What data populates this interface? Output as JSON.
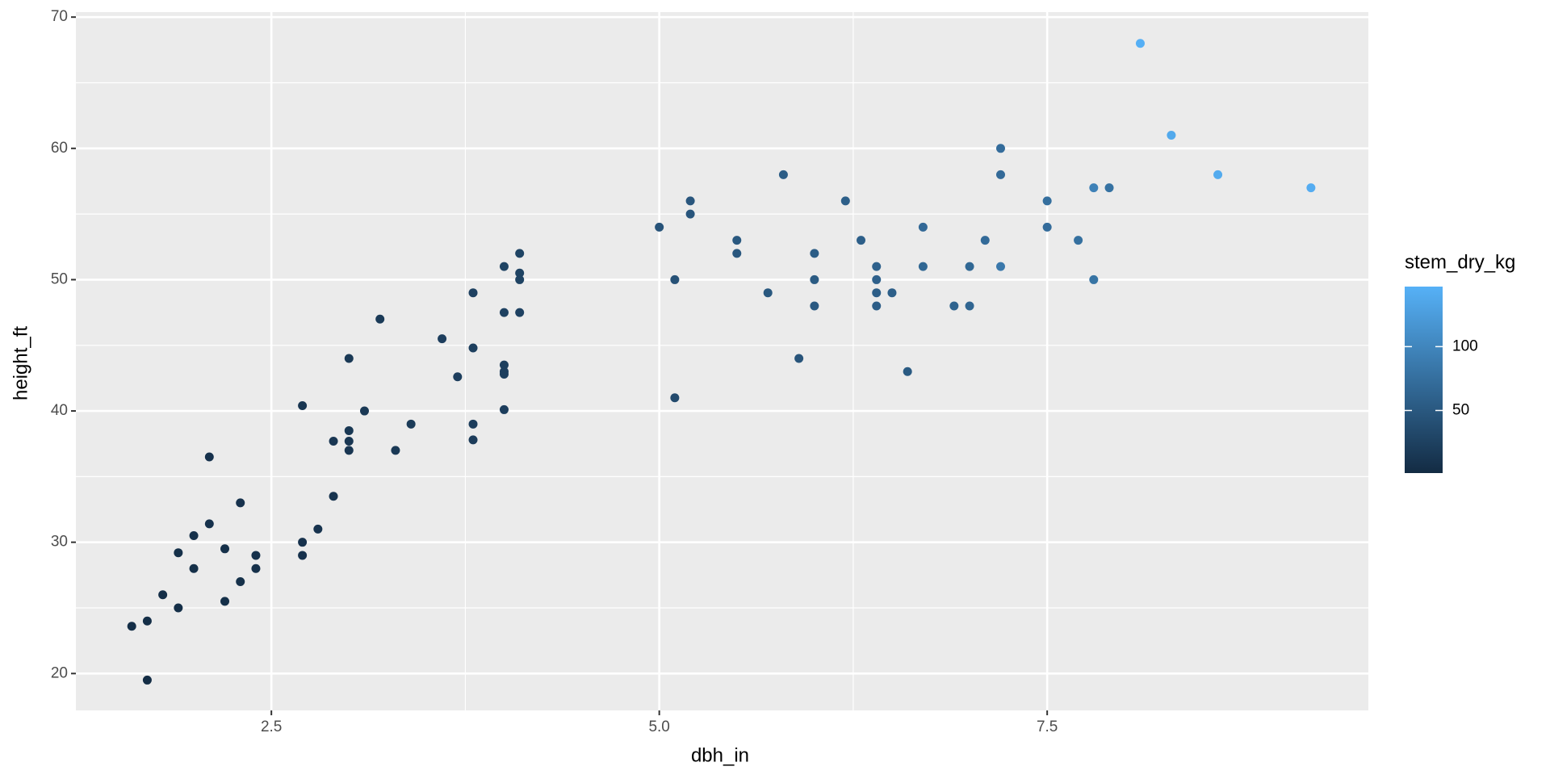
{
  "chart_data": {
    "type": "scatter",
    "x_label": "dbh_in",
    "y_label": "height_ft",
    "x": [
      1.6,
      1.7,
      1.7,
      1.8,
      1.9,
      1.9,
      2.0,
      2.0,
      2.1,
      2.1,
      2.2,
      2.2,
      2.3,
      2.3,
      2.4,
      2.4,
      2.7,
      2.7,
      2.7,
      2.8,
      2.9,
      2.9,
      3.0,
      3.0,
      3.0,
      3.0,
      3.1,
      3.2,
      3.3,
      3.4,
      3.6,
      3.7,
      3.8,
      3.8,
      3.8,
      3.8,
      4.0,
      4.0,
      4.0,
      4.0,
      4.0,
      4.0,
      4.1,
      4.1,
      4.1,
      4.1,
      5.0,
      5.1,
      5.1,
      5.2,
      5.2,
      5.5,
      5.5,
      5.7,
      5.8,
      5.9,
      6.0,
      6.0,
      6.0,
      6.2,
      6.3,
      6.4,
      6.4,
      6.4,
      6.4,
      6.5,
      6.6,
      6.7,
      6.7,
      6.9,
      7.0,
      7.0,
      7.1,
      7.2,
      7.2,
      7.2,
      7.5,
      7.5,
      7.7,
      7.8,
      7.8,
      7.9,
      8.1,
      8.3,
      8.6,
      9.2
    ],
    "values": [
      23.6,
      24.0,
      19.5,
      26.0,
      29.2,
      25.0,
      30.5,
      28.0,
      36.5,
      31.4,
      29.5,
      25.5,
      33.0,
      27.0,
      29.0,
      28.0,
      40.4,
      30.0,
      29.0,
      31.0,
      37.7,
      33.5,
      44.0,
      38.5,
      37.7,
      37.0,
      40.0,
      47.0,
      37.0,
      39.0,
      45.5,
      42.6,
      49.0,
      44.8,
      39.0,
      37.8,
      51.0,
      47.5,
      43.5,
      43.0,
      42.8,
      40.1,
      52.0,
      50.5,
      50.0,
      47.5,
      54.0,
      50.0,
      41.0,
      56.0,
      55.0,
      53.0,
      52.0,
      49.0,
      58.0,
      44.0,
      52.0,
      50.0,
      48.0,
      56.0,
      53.0,
      51.0,
      50.0,
      49.0,
      48.0,
      49.0,
      43.0,
      54.0,
      51.0,
      48.0,
      51.0,
      48.0,
      53.0,
      60.0,
      58.0,
      51.0,
      56.0,
      54.0,
      53.0,
      57.0,
      50.0,
      57.0,
      68.0,
      61.0,
      58.0,
      57.0
    ],
    "color_values": [
      4,
      4,
      3,
      5,
      6,
      5,
      7,
      6,
      8,
      8,
      7,
      6,
      9,
      7,
      8,
      7,
      12,
      9,
      8,
      10,
      13,
      11,
      16,
      15,
      14,
      13,
      16,
      17,
      16,
      18,
      22,
      22,
      25,
      23,
      21,
      20,
      27,
      25,
      23,
      23,
      23,
      21,
      28,
      27,
      27,
      25,
      45,
      42,
      35,
      48,
      47,
      50,
      49,
      50,
      55,
      46,
      55,
      53,
      51,
      58,
      58,
      60,
      59,
      57,
      56,
      58,
      52,
      68,
      66,
      62,
      67,
      64,
      70,
      72,
      70,
      85,
      75,
      72,
      76,
      95,
      80,
      78,
      145,
      138,
      140,
      142
    ],
    "color_label": "stem_dry_kg",
    "colorlim": [
      1,
      147
    ],
    "colorticks": [
      50,
      100
    ],
    "color_low": "#132b43",
    "color_high": "#56b1f7",
    "xlim": [
      1.24,
      9.57
    ],
    "xticks": [
      2.5,
      {
        "value": 5,
        "label": "5.0"
      },
      7.5
    ],
    "ylim": [
      17.19,
      70.38
    ],
    "yticks": [
      20,
      30,
      40,
      50,
      60,
      70
    ],
    "grid": true
  }
}
